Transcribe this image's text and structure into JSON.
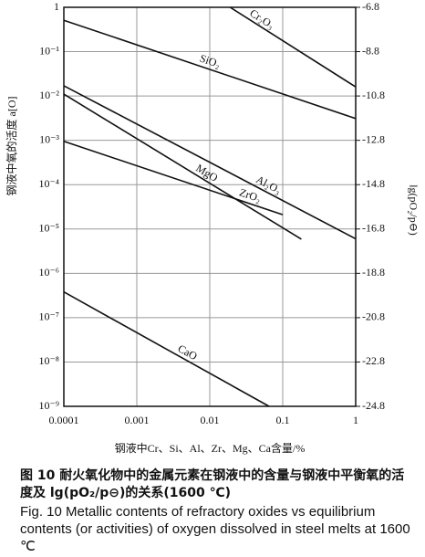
{
  "chart_data": {
    "type": "line",
    "x_label": "钢液中Cr、Si、Al、Zr、Mg、Ca含量/%",
    "y_label": "钢液中氧的活度 a[O]",
    "y2_label": "lg(pO₂/p⊖)",
    "xscale": "log",
    "yscale": "log",
    "xlim": [
      0.0001,
      1
    ],
    "ylim": [
      1e-09,
      1
    ],
    "xticks": [
      0.0001,
      0.001,
      0.01,
      0.1,
      1
    ],
    "yticks": [
      {
        "value": 1,
        "label": "1"
      },
      {
        "value": 0.1,
        "label": "10⁻¹"
      },
      {
        "value": 0.01,
        "label": "10⁻²"
      },
      {
        "value": 0.001,
        "label": "10⁻³"
      },
      {
        "value": 0.0001,
        "label": "10⁻⁴"
      },
      {
        "value": 1e-05,
        "label": "10⁻⁵"
      },
      {
        "value": 1e-06,
        "label": "10⁻⁶"
      },
      {
        "value": 1e-07,
        "label": "10⁻⁷"
      },
      {
        "value": 1e-08,
        "label": "10⁻⁸"
      },
      {
        "value": 1e-09,
        "label": "10⁻⁹"
      }
    ],
    "y2lim": [
      -24.8,
      -6.8
    ],
    "y2ticks": [
      -6.8,
      -8.8,
      -10.8,
      -12.8,
      -14.8,
      -16.8,
      -18.8,
      -20.8,
      -22.8,
      -24.8
    ],
    "grid": true,
    "series": [
      {
        "name": "Cr₂O₃",
        "color": "#111111",
        "x": [
          0.019,
          1
        ],
        "values": [
          1,
          0.016
        ]
      },
      {
        "name": "SiO₂",
        "color": "#111111",
        "x": [
          0.0001,
          1
        ],
        "values": [
          0.51,
          0.0031
        ]
      },
      {
        "name": "Al₂O₃",
        "color": "#111111",
        "x": [
          0.0001,
          1
        ],
        "values": [
          0.017,
          6e-06
        ]
      },
      {
        "name": "MgO",
        "color": "#111111",
        "x": [
          0.0001,
          0.18
        ],
        "values": [
          0.011,
          5.9e-06
        ]
      },
      {
        "name": "ZrO₂",
        "color": "#111111",
        "x": [
          0.0001,
          0.1
        ],
        "values": [
          0.00095,
          2.1e-05
        ]
      },
      {
        "name": "CaO",
        "color": "#111111",
        "x": [
          0.0001,
          0.065
        ],
        "values": [
          3.8e-07,
          1e-09
        ]
      }
    ]
  },
  "caption_cn": "图 10  耐火氧化物中的金属元素在钢液中的含量与钢液中平衡氧的活度及 lg(pO₂/p⊖)的关系(1600 ℃)",
  "caption_en": "Fig. 10 Metallic contents of refractory oxides vs equilibrium contents (or activities) of oxygen dissolved in steel melts at 1600 ℃"
}
